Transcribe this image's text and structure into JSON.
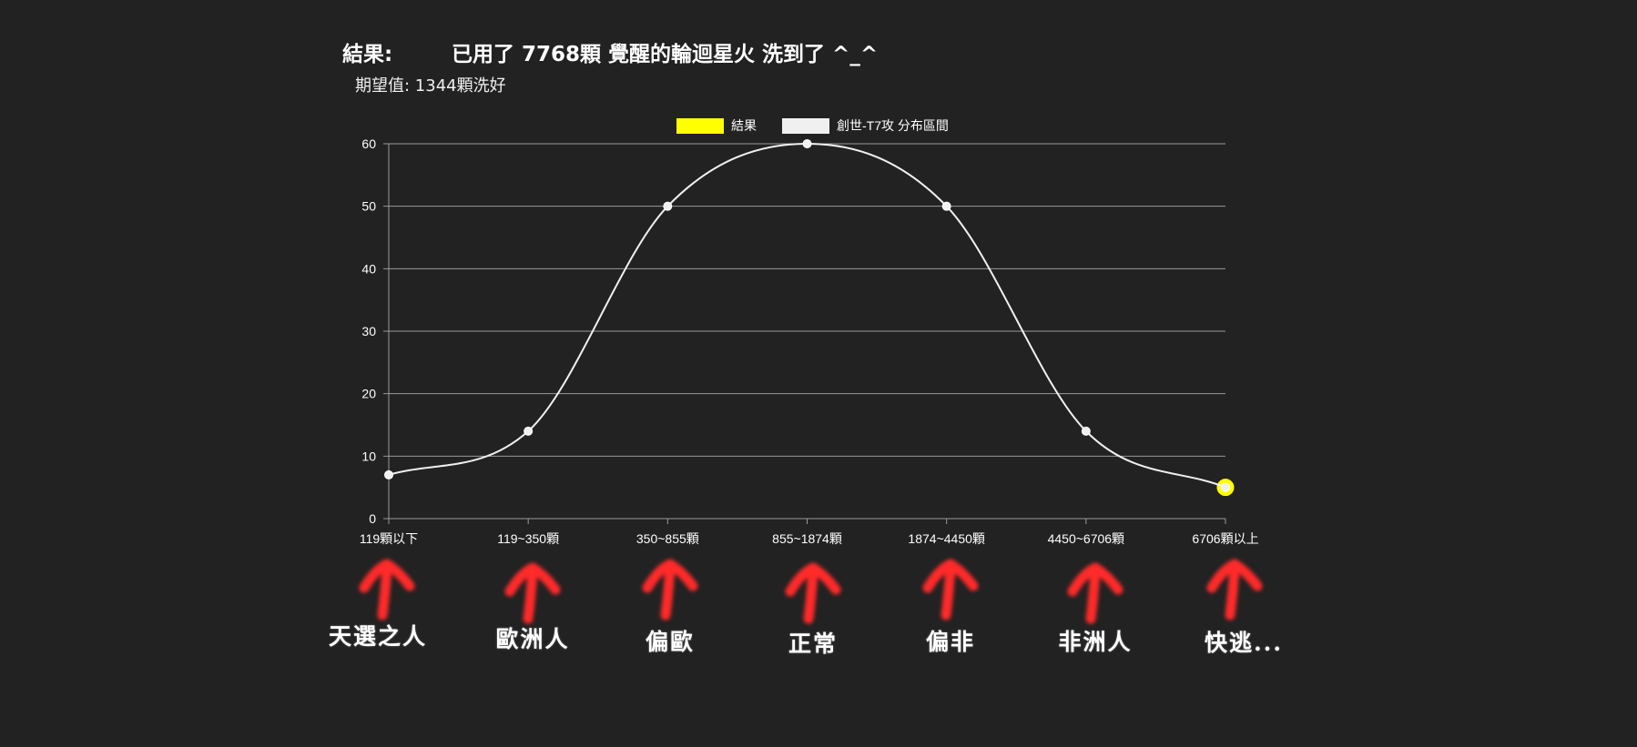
{
  "header": {
    "result_label": "結果:",
    "result_text": "已用了 7768顆 覺醒的輪迴星火 洗到了 ^_^",
    "expectation": "期望值: 1344顆洗好"
  },
  "colors": {
    "background": "#222222",
    "result_series": "#ffff00",
    "distribution_series": "#f0f0f0",
    "arrow": "#ff2a2a",
    "grid": "#9a9a9a"
  },
  "chart_data": {
    "type": "line",
    "categories": [
      "119顆以下",
      "119~350顆",
      "350~855顆",
      "855~1874顆",
      "1874~4450顆",
      "4450~6706顆",
      "6706顆以上"
    ],
    "series": [
      {
        "name": "結果",
        "color": "#ffff00",
        "values": [
          null,
          null,
          null,
          null,
          null,
          null,
          5
        ],
        "point": "large"
      },
      {
        "name": "創世-T7攻 分布區間",
        "color": "#f0f0f0",
        "values": [
          7,
          14,
          50,
          60,
          50,
          14,
          5
        ],
        "curve": "smooth"
      }
    ],
    "ylim": [
      0,
      60
    ],
    "yticks": [
      0,
      10,
      20,
      30,
      40,
      50,
      60
    ],
    "grid": true,
    "legend": "top-center"
  },
  "annotations": {
    "arrow_icon": "red-up-arrow",
    "labels": [
      "天選之人",
      "歐洲人",
      "偏歐",
      "正常",
      "偏非",
      "非洲人",
      "快逃..."
    ]
  }
}
